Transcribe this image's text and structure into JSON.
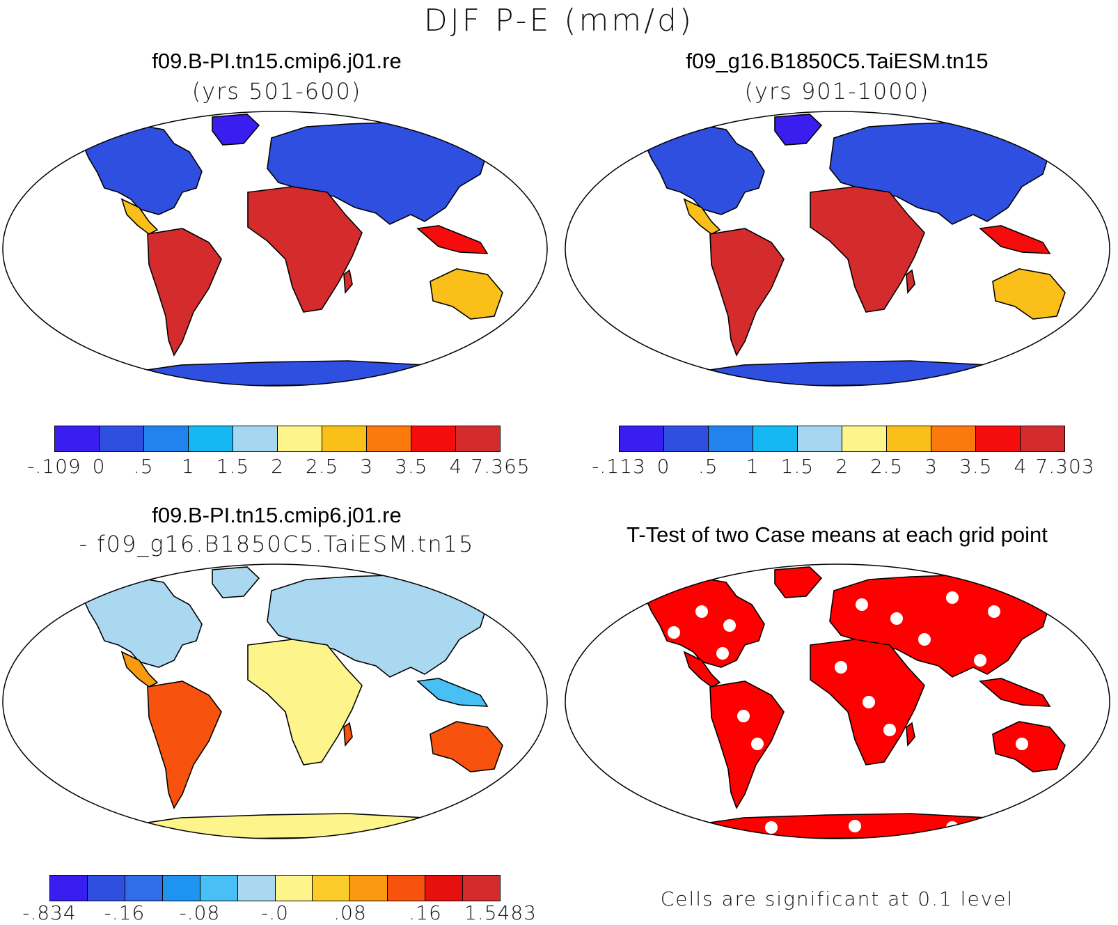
{
  "title": "DJF P-E (mm/d)",
  "panels": [
    {
      "id": "top-left",
      "title": "f09.B-PI.tn15.cmip6.j01.re",
      "subtitle": "(yrs 501-600)",
      "colorbar": {
        "colors": [
          "#3a1ef0",
          "#2f4fe0",
          "#2383ee",
          "#15b8f2",
          "#a7d7f0",
          "#fdf48c",
          "#fbbf1a",
          "#fb7a0e",
          "#f50d0d",
          "#d42c2c"
        ],
        "tick_labels": [
          "-.109",
          "0",
          ".5",
          "1",
          "1.5",
          "2",
          "2.5",
          "3",
          "3.5",
          "4",
          "7.365"
        ]
      },
      "fill_style": "absolute"
    },
    {
      "id": "top-right",
      "title": "f09_g16.B1850C5.TaiESM.tn15",
      "subtitle": "(yrs 901-1000)",
      "colorbar": {
        "colors": [
          "#3a1ef0",
          "#2f4fe0",
          "#2383ee",
          "#15b8f2",
          "#a7d7f0",
          "#fdf48c",
          "#fbbf1a",
          "#fb7a0e",
          "#f50d0d",
          "#d42c2c"
        ],
        "tick_labels": [
          "-.113",
          "0",
          ".5",
          "1",
          "1.5",
          "2",
          "2.5",
          "3",
          "3.5",
          "4",
          "7.303"
        ]
      },
      "fill_style": "absolute"
    },
    {
      "id": "bottom-left",
      "title": "f09.B-PI.tn15.cmip6.j01.re",
      "subtitle": "- f09_g16.B1850C5.TaiESM.tn15",
      "colorbar": {
        "colors": [
          "#3a1ef0",
          "#2f4fe0",
          "#2f6ee8",
          "#1e94f0",
          "#48c0f5",
          "#a9d8f0",
          "#fdf48c",
          "#fbcc2a",
          "#fb9a10",
          "#f7530e",
          "#e6110e",
          "#d42c2c"
        ],
        "tick_labels": [
          "-.834",
          "-.16",
          "-.08",
          "-.0",
          ".08",
          ".16",
          "1.5483"
        ]
      },
      "fill_style": "difference"
    },
    {
      "id": "bottom-right",
      "title": "T-Test of two Case means at each grid point",
      "note": "Cells are significant at 0.1 level",
      "fill_style": "significance",
      "significance_color": "#ff0000"
    }
  ]
}
